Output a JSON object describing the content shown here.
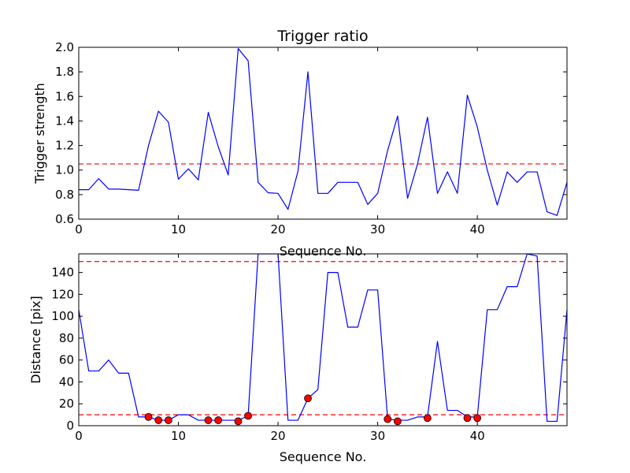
{
  "chart_data": [
    {
      "type": "line",
      "title": "Trigger ratio",
      "xlabel": "Sequence No.",
      "ylabel": "Trigger strength",
      "xlim": [
        0,
        49
      ],
      "ylim": [
        0.6,
        2.0
      ],
      "x_ticks": [
        0,
        10,
        20,
        30,
        40
      ],
      "y_ticks": [
        0.6,
        0.8,
        1.0,
        1.2,
        1.4,
        1.6,
        1.8,
        2.0
      ],
      "y_tick_labels": [
        "0.6",
        "0.8",
        "1.0",
        "1.2",
        "1.4",
        "1.6",
        "1.8",
        "2.0"
      ],
      "grid": false,
      "threshold_lines": [
        1.05
      ],
      "series": [
        {
          "color": "#0000ff",
          "x": [
            0,
            1,
            2,
            3,
            4,
            5,
            6,
            7,
            8,
            9,
            10,
            11,
            12,
            13,
            14,
            15,
            16,
            17,
            18,
            19,
            20,
            21,
            22,
            23,
            24,
            25,
            26,
            27,
            28,
            29,
            30,
            31,
            32,
            33,
            34,
            35,
            36,
            37,
            38,
            39,
            40,
            41,
            42,
            43,
            44,
            45,
            46,
            47,
            48,
            49
          ],
          "values": [
            0.84,
            0.84,
            0.93,
            0.845,
            0.845,
            0.84,
            0.835,
            1.2,
            1.48,
            1.39,
            0.925,
            1.01,
            0.92,
            1.47,
            1.19,
            0.96,
            1.99,
            1.89,
            0.9,
            0.815,
            0.81,
            0.68,
            0.99,
            1.8,
            0.81,
            0.81,
            0.9,
            0.9,
            0.9,
            0.72,
            0.81,
            1.16,
            1.44,
            0.77,
            1.05,
            1.43,
            0.81,
            0.985,
            0.81,
            1.61,
            1.35,
            1.0,
            0.715,
            0.985,
            0.9,
            0.985,
            0.985,
            0.66,
            0.63,
            0.9
          ]
        }
      ],
      "threshold_color": "#ff0000"
    },
    {
      "type": "line",
      "title": "",
      "xlabel": "Sequence No.",
      "ylabel": "Distance [pix]",
      "xlim": [
        0,
        49
      ],
      "ylim": [
        0,
        157
      ],
      "x_ticks": [
        0,
        10,
        20,
        30,
        40
      ],
      "y_ticks": [
        0,
        20,
        40,
        60,
        80,
        100,
        120,
        140
      ],
      "grid": false,
      "threshold_lines": [
        10,
        150
      ],
      "series": [
        {
          "color": "#0000ff",
          "x": [
            0,
            1,
            2,
            3,
            4,
            5,
            6,
            7,
            8,
            9,
            10,
            11,
            12,
            13,
            14,
            15,
            16,
            17,
            18,
            19,
            20,
            21,
            22,
            23,
            24,
            25,
            26,
            27,
            28,
            29,
            30,
            31,
            32,
            33,
            34,
            35,
            36,
            37,
            38,
            39,
            40,
            41,
            42,
            43,
            44,
            45,
            46,
            47,
            48,
            49
          ],
          "values": [
            106,
            50,
            50,
            60,
            48,
            48,
            8,
            8,
            5,
            5,
            10,
            10,
            5,
            5,
            5,
            5,
            5,
            9,
            157,
            157,
            157,
            5,
            5,
            25,
            33,
            140,
            140,
            90,
            90,
            124,
            124,
            6,
            5,
            5,
            8,
            8,
            77,
            14,
            14,
            8,
            8,
            106,
            106,
            127,
            127,
            157,
            155,
            4,
            4,
            106
          ]
        },
        {
          "type": "scatter",
          "color": "#ff0000",
          "x": [
            7,
            8,
            9,
            13,
            14,
            16,
            17,
            23,
            31,
            32,
            35,
            39,
            40
          ],
          "values": [
            8,
            5,
            5,
            5,
            5,
            4,
            9,
            25,
            6,
            4,
            7,
            7,
            7
          ]
        }
      ],
      "threshold_color": "#ff0000"
    }
  ]
}
